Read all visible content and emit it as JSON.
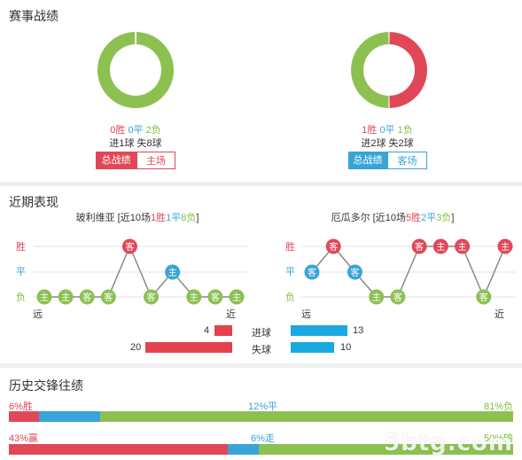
{
  "section1": {
    "title": "赛事战绩",
    "left": {
      "win": "0胜",
      "draw": "0平",
      "loss": "2负",
      "goals": "进1球  失8球",
      "fractions": {
        "win": 0,
        "draw": 0,
        "loss": 1
      },
      "tab_active": "总战绩",
      "tab_other": "主场"
    },
    "right": {
      "win": "1胜",
      "draw": "0平",
      "loss": "1负",
      "goals": "进2球  失2球",
      "fractions": {
        "win": 0.5,
        "draw": 0,
        "loss": 0.5
      },
      "tab_active": "总战绩",
      "tab_other": "客场"
    },
    "colors": {
      "win": "#e04858",
      "draw": "#3aa3d8",
      "loss": "#8cc152",
      "accent_red": "#e04858",
      "accent_blue": "#3aa3d8"
    }
  },
  "section2": {
    "title": "近期表现",
    "axis": {
      "win": "胜",
      "draw": "平",
      "loss": "负",
      "far": "远",
      "near": "近"
    },
    "left": {
      "team": "玻利维亚",
      "summary_pre": " [近10场",
      "w": "1胜",
      "d": "1平",
      "l": "8负",
      "summary_post": "]",
      "results": [
        "L",
        "L",
        "L",
        "L",
        "W",
        "L",
        "D",
        "L",
        "L",
        "L"
      ],
      "venues": [
        "主",
        "主",
        "客",
        "客",
        "客",
        "客",
        "主",
        "主",
        "客",
        "主"
      ]
    },
    "right": {
      "team": "厄瓜多尔",
      "summary_pre": " [近10场",
      "w": "5胜",
      "d": "2平",
      "l": "3负",
      "summary_post": "]",
      "results": [
        "D",
        "W",
        "D",
        "L",
        "L",
        "W",
        "W",
        "W",
        "L",
        "W"
      ],
      "venues": [
        "客",
        "客",
        "客",
        "主",
        "客",
        "客",
        "主",
        "主",
        "客",
        "主"
      ]
    },
    "goals": {
      "scored_label": "进球",
      "conceded_label": "失球",
      "left_scored": "4",
      "left_conceded": "20",
      "right_scored": "13",
      "right_conceded": "10",
      "left_scored_value": 4,
      "left_conceded_value": 20,
      "right_scored_value": 13,
      "right_conceded_value": 10
    }
  },
  "section3": {
    "title": "历史交锋往绩",
    "row1": {
      "left": "6%胜",
      "mid": "12%平",
      "right": "81%负",
      "values": [
        6,
        12,
        81
      ]
    },
    "row2": {
      "left": "43%赢",
      "mid": "6%走",
      "right": "50%输",
      "values": [
        43,
        6,
        50
      ]
    }
  },
  "watermark": "5btg.com"
}
